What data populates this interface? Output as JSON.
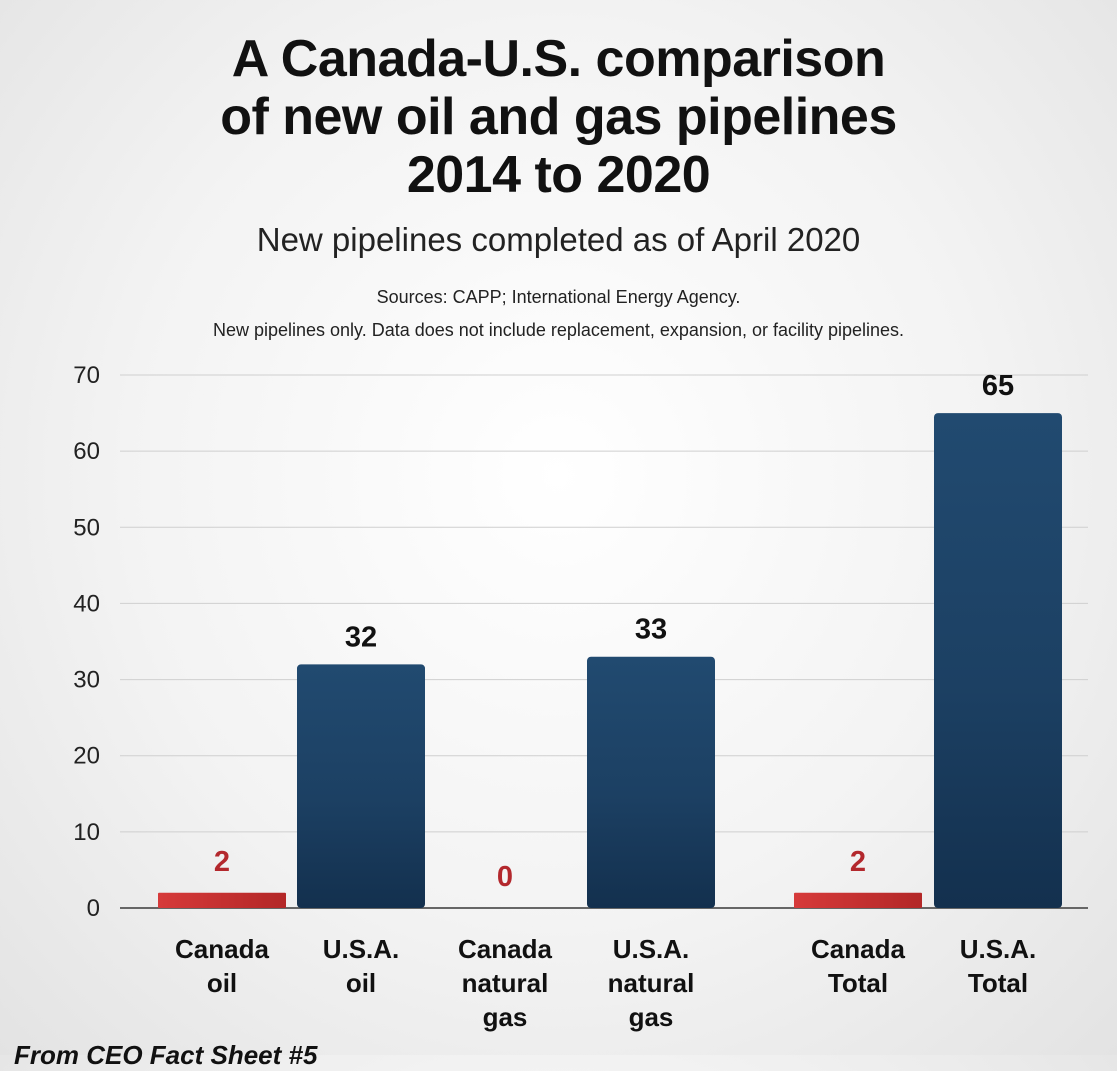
{
  "chart_data": {
    "type": "bar",
    "title": [
      "A Canada-U.S. comparison",
      "of new oil and gas pipelines",
      "2014 to 2020"
    ],
    "subtitle": "New pipelines completed as of April 2020",
    "source": "Sources: CAPP; International Energy Agency.",
    "note": "New pipelines only. Data does not include replacement, expansion, or facility pipelines.",
    "ylim": [
      0,
      70
    ],
    "yticks": [
      0,
      10,
      20,
      30,
      40,
      50,
      60,
      70
    ],
    "grid": true,
    "categories": [
      [
        "Canada",
        "oil"
      ],
      [
        "U.S.A.",
        "oil"
      ],
      [
        "Canada",
        "natural",
        "gas"
      ],
      [
        "U.S.A.",
        "natural",
        "gas"
      ],
      [
        "Canada",
        "Total"
      ],
      [
        "U.S.A.",
        "Total"
      ]
    ],
    "values": [
      2,
      32,
      0,
      33,
      2,
      65
    ],
    "data_labels": [
      "2",
      "32",
      "0",
      "33",
      "2",
      "65"
    ],
    "colors": {
      "canada": "#c62f2f",
      "usa": "#1c4366",
      "canada_label": "#b3282d",
      "usa_label": "#111111"
    },
    "bar_country": [
      "canada",
      "usa",
      "canada",
      "usa",
      "canada",
      "usa"
    ]
  },
  "footer": "From CEO Fact Sheet #5"
}
